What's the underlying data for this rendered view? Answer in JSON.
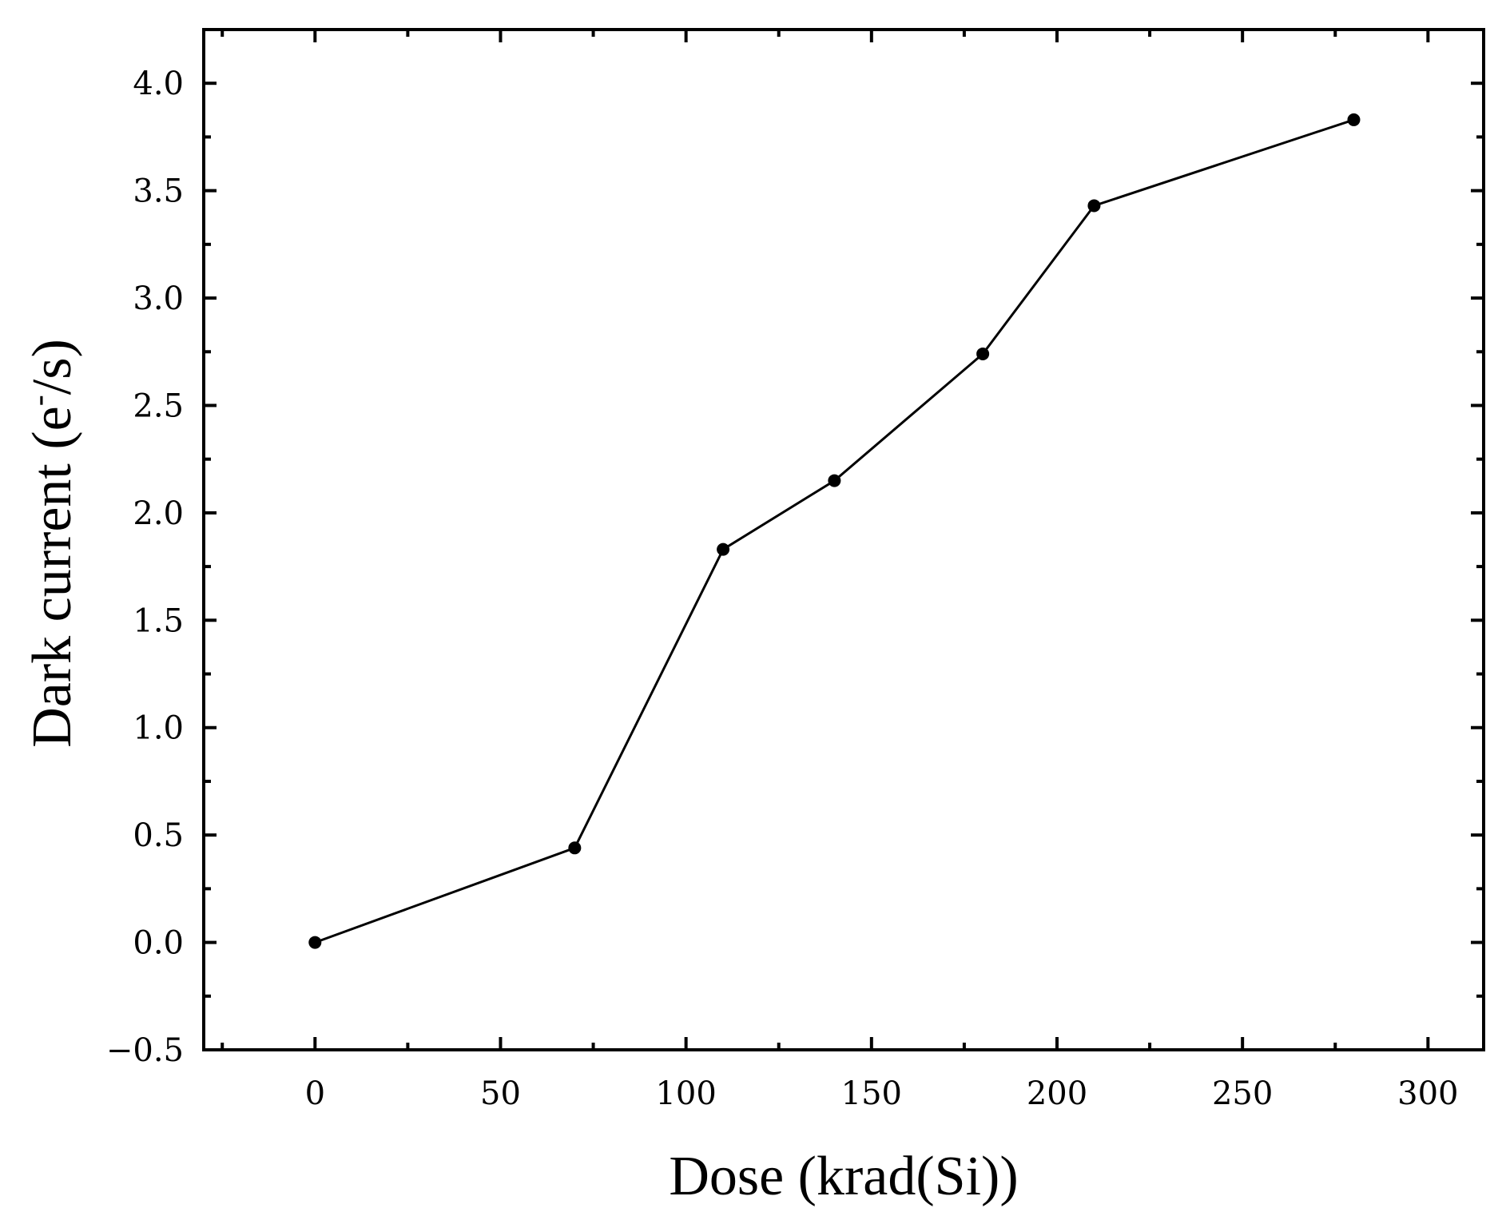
{
  "chart_data": {
    "type": "line",
    "title": "",
    "xlabel": "Dose (krad(Si))",
    "ylabel_main": "Dark current (e",
    "ylabel_sup": "-",
    "ylabel_tail": "/s)",
    "xlim": [
      -30,
      315
    ],
    "ylim": [
      -0.5,
      4.25
    ],
    "x_ticks": [
      0,
      50,
      100,
      150,
      200,
      250,
      300
    ],
    "x_tick_labels": [
      "0",
      "50",
      "100",
      "150",
      "200",
      "250",
      "300"
    ],
    "y_ticks": [
      -0.5,
      0.0,
      0.5,
      1.0,
      1.5,
      2.0,
      2.5,
      3.0,
      3.5,
      4.0
    ],
    "y_tick_labels": [
      "−0.5",
      "0.0",
      "0.5",
      "1.0",
      "1.5",
      "2.0",
      "2.5",
      "3.0",
      "3.5",
      "4.0"
    ],
    "x_minor_step": 25,
    "y_minor_step": 0.25,
    "grid": false,
    "legend": "none",
    "series": [
      {
        "x": [
          0,
          70,
          110,
          140,
          180,
          210,
          280
        ],
        "y": [
          0.0,
          0.44,
          1.83,
          2.15,
          2.74,
          3.43,
          3.83
        ],
        "color": "#000000",
        "marker": "circle"
      }
    ]
  }
}
